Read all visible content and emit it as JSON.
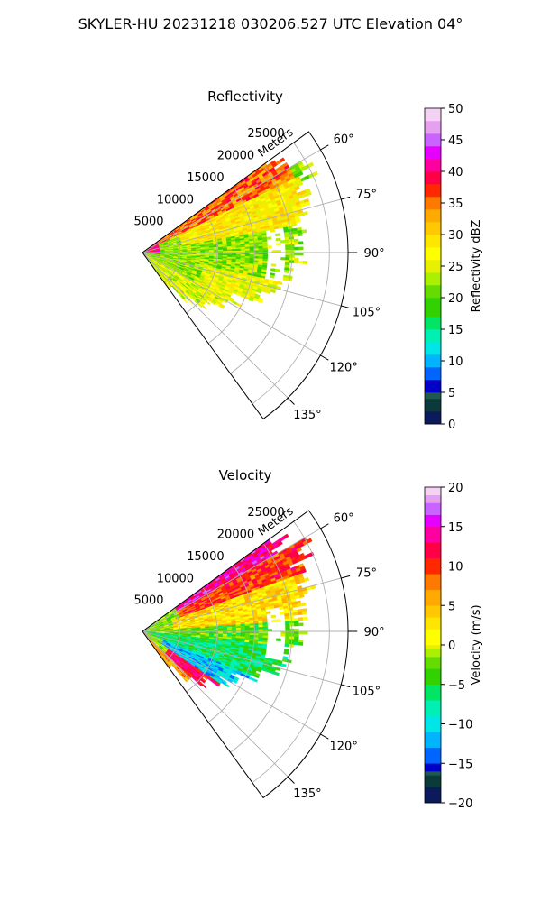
{
  "figure": {
    "title": "SKYLER-HU  20231218  030206.527 UTC Elevation 04°"
  },
  "chart_data": [
    {
      "type": "heatmap",
      "projection": "polar-sector",
      "title": "Reflectivity",
      "radial_label": "Meters",
      "radial_ticks": [
        5000,
        10000,
        15000,
        20000,
        25000
      ],
      "radial_tick_labels": [
        "5000",
        "10000",
        "15000",
        "20000",
        "25000"
      ],
      "range_max": 27500,
      "angle_ticks": [
        60,
        75,
        90,
        105,
        120,
        135
      ],
      "angle_tick_labels": [
        "60°",
        "75°",
        "90°",
        "105°",
        "120°",
        "135°"
      ],
      "azimuth_range": [
        54,
        144
      ],
      "grid": true,
      "colorbar": {
        "label": "Reflectivity dBZ",
        "ticks": [
          0,
          5,
          10,
          15,
          20,
          25,
          30,
          35,
          40,
          45,
          50
        ],
        "tick_labels": [
          "0",
          "5",
          "10",
          "15",
          "20",
          "25",
          "30",
          "35",
          "40",
          "45",
          "50"
        ],
        "vmin": 0,
        "vmax": 50,
        "stops": [
          {
            "v": 0,
            "c": "#0a1a5a"
          },
          {
            "v": 2,
            "c": "#0a3a3a"
          },
          {
            "v": 4,
            "c": "#1e5a50"
          },
          {
            "v": 5,
            "c": "#0000c8"
          },
          {
            "v": 7,
            "c": "#0064ff"
          },
          {
            "v": 9,
            "c": "#00b4ff"
          },
          {
            "v": 11,
            "c": "#00e6e6"
          },
          {
            "v": 13,
            "c": "#00f0b4"
          },
          {
            "v": 15,
            "c": "#00e664"
          },
          {
            "v": 17,
            "c": "#32d200"
          },
          {
            "v": 20,
            "c": "#64dc00"
          },
          {
            "v": 22,
            "c": "#aaf000"
          },
          {
            "v": 24,
            "c": "#e6f000"
          },
          {
            "v": 26,
            "c": "#ffff00"
          },
          {
            "v": 28,
            "c": "#ffe600"
          },
          {
            "v": 30,
            "c": "#ffc800"
          },
          {
            "v": 32,
            "c": "#ffaa00"
          },
          {
            "v": 34,
            "c": "#ff7800"
          },
          {
            "v": 36,
            "c": "#ff2800"
          },
          {
            "v": 38,
            "c": "#ff0046"
          },
          {
            "v": 40,
            "c": "#ff00a0"
          },
          {
            "v": 42,
            "c": "#e600ff"
          },
          {
            "v": 44,
            "c": "#c864ff"
          },
          {
            "v": 46,
            "c": "#e6a0f0"
          },
          {
            "v": 48,
            "c": "#f5d2f5"
          },
          {
            "v": 50,
            "c": "#fff0ff"
          }
        ]
      },
      "field": {
        "echo_gate_start_deg": 126,
        "notch_azimuths": [
          80,
          102
        ],
        "notch_range": [
          0.6,
          0.7
        ],
        "ranges": [
          [
            54,
            60,
            22
          ],
          [
            60,
            66,
            25
          ],
          [
            66,
            72,
            23
          ],
          [
            72,
            78,
            23
          ],
          [
            78,
            84,
            22
          ],
          [
            84,
            91,
            21
          ],
          [
            91,
            96,
            21
          ],
          [
            96,
            102,
            20
          ],
          [
            102,
            108,
            19
          ],
          [
            108,
            114,
            17
          ],
          [
            114,
            120,
            14
          ],
          [
            120,
            126,
            13
          ],
          [
            126,
            133,
            11
          ],
          [
            133,
            139,
            9
          ],
          [
            139,
            144,
            6
          ]
        ],
        "sectors": [
          {
            "az": [
              54,
              64
            ],
            "r": [
              0,
              0.82
            ],
            "value": 35
          },
          {
            "az": [
              64,
              80
            ],
            "r": [
              0.2,
              0.85
            ],
            "value": 28
          },
          {
            "az": [
              80,
              102
            ],
            "r": [
              0,
              0.6
            ],
            "value": 22
          },
          {
            "az": [
              102,
              120
            ],
            "r": [
              0.3,
              0.72
            ],
            "value": 26
          },
          {
            "az": [
              120,
              144
            ],
            "r": [
              0,
              0.5
            ],
            "value": 25
          },
          {
            "az": [
              54,
              96
            ],
            "r": [
              0,
              0.08
            ],
            "value": 40
          }
        ]
      }
    },
    {
      "type": "heatmap",
      "projection": "polar-sector",
      "title": "Velocity",
      "radial_label": "Meters",
      "radial_ticks": [
        5000,
        10000,
        15000,
        20000,
        25000
      ],
      "radial_tick_labels": [
        "5000",
        "10000",
        "15000",
        "20000",
        "25000"
      ],
      "range_max": 27500,
      "angle_ticks": [
        60,
        75,
        90,
        105,
        120,
        135
      ],
      "angle_tick_labels": [
        "60°",
        "75°",
        "90°",
        "105°",
        "120°",
        "135°"
      ],
      "azimuth_range": [
        54,
        144
      ],
      "grid": true,
      "colorbar": {
        "label": "Velocity (m/s)",
        "ticks": [
          -20,
          -15,
          -10,
          -5,
          0,
          5,
          10,
          15,
          20
        ],
        "tick_labels": [
          "−20",
          "−15",
          "−10",
          "−5",
          "0",
          "5",
          "10",
          "15",
          "20"
        ],
        "vmin": -20,
        "vmax": 20,
        "stops": [
          {
            "v": -20,
            "c": "#0a1a5a"
          },
          {
            "v": -18,
            "c": "#0a3a3a"
          },
          {
            "v": -16.5,
            "c": "#1e5a50"
          },
          {
            "v": -16,
            "c": "#0000c8"
          },
          {
            "v": -15,
            "c": "#0064ff"
          },
          {
            "v": -13,
            "c": "#00b4ff"
          },
          {
            "v": -11,
            "c": "#00e6e6"
          },
          {
            "v": -9,
            "c": "#00f0b4"
          },
          {
            "v": -7,
            "c": "#00e664"
          },
          {
            "v": -5,
            "c": "#32d200"
          },
          {
            "v": -3,
            "c": "#64dc00"
          },
          {
            "v": -1.5,
            "c": "#aaf000"
          },
          {
            "v": -0.5,
            "c": "#e6f000"
          },
          {
            "v": 0,
            "c": "#ffff00"
          },
          {
            "v": 2,
            "c": "#ffe600"
          },
          {
            "v": 3.5,
            "c": "#ffc800"
          },
          {
            "v": 5,
            "c": "#ffaa00"
          },
          {
            "v": 7,
            "c": "#ff7800"
          },
          {
            "v": 9,
            "c": "#ff2800"
          },
          {
            "v": 11,
            "c": "#ff0046"
          },
          {
            "v": 13,
            "c": "#ff00a0"
          },
          {
            "v": 15,
            "c": "#e600ff"
          },
          {
            "v": 16.5,
            "c": "#c864ff"
          },
          {
            "v": 18,
            "c": "#e6a0f0"
          },
          {
            "v": 19,
            "c": "#f5d2f5"
          },
          {
            "v": 20,
            "c": "#fff0ff"
          }
        ]
      },
      "field": {
        "echo_gate_start_deg": 126,
        "notch_azimuths": [
          80,
          102
        ],
        "notch_range": [
          0.6,
          0.7
        ],
        "ranges": [
          [
            54,
            60,
            22
          ],
          [
            60,
            66,
            25
          ],
          [
            66,
            72,
            23
          ],
          [
            72,
            78,
            23
          ],
          [
            78,
            84,
            22
          ],
          [
            84,
            91,
            21
          ],
          [
            91,
            96,
            21
          ],
          [
            96,
            102,
            20
          ],
          [
            102,
            108,
            19
          ],
          [
            108,
            114,
            17
          ],
          [
            114,
            120,
            14
          ],
          [
            120,
            126,
            13
          ],
          [
            126,
            133,
            11
          ],
          [
            133,
            139,
            9
          ],
          [
            139,
            144,
            6
          ]
        ],
        "sectors": [
          {
            "az": [
              54,
              60
            ],
            "r": [
              0.2,
              0.95
            ],
            "value": 14
          },
          {
            "az": [
              60,
              70
            ],
            "r": [
              0.2,
              0.95
            ],
            "value": 10
          },
          {
            "az": [
              70,
              86
            ],
            "r": [
              0.15,
              0.95
            ],
            "value": 3
          },
          {
            "az": [
              86,
              96
            ],
            "r": [
              0,
              0.8
            ],
            "value": -3
          },
          {
            "az": [
              96,
              112
            ],
            "r": [
              0,
              0.8
            ],
            "value": -6
          },
          {
            "az": [
              112,
              124
            ],
            "r": [
              0.1,
              0.6
            ],
            "value": -11
          },
          {
            "az": [
              124,
              134
            ],
            "r": [
              0.15,
              0.6
            ],
            "value": 12
          },
          {
            "az": [
              134,
              144
            ],
            "r": [
              0,
              0.45
            ],
            "value": 6
          },
          {
            "az": [
              54,
              96
            ],
            "r": [
              0,
              0.1
            ],
            "value": -2
          }
        ]
      }
    }
  ]
}
